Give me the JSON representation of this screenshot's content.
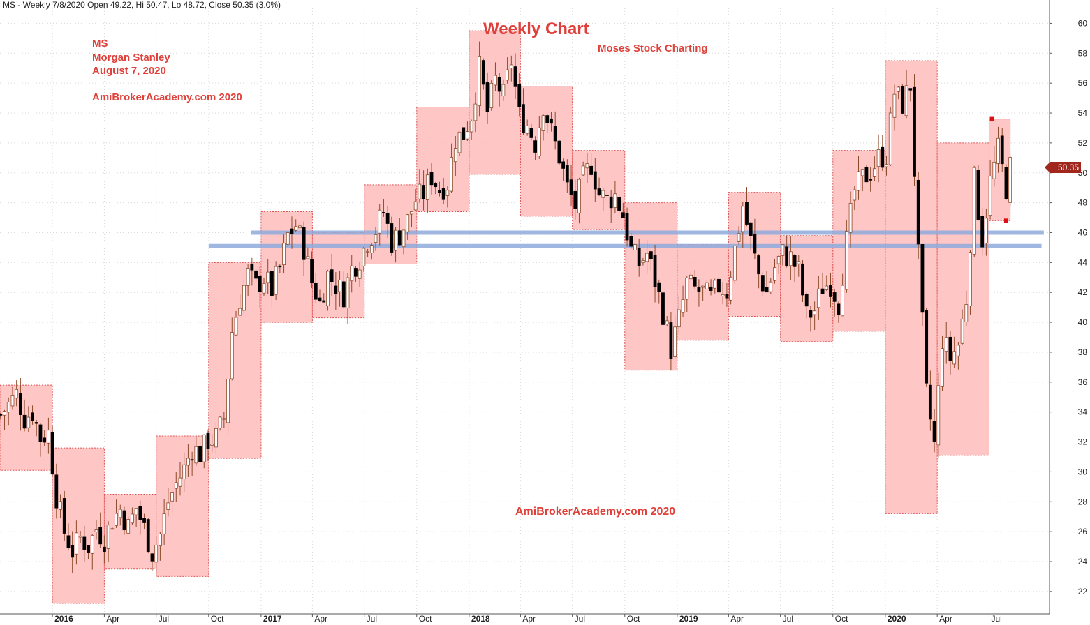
{
  "header": "MS - Weekly 7/8/2020 Open 49.22, Hi 50.47, Lo 48.72, Close 50.35 (3.0%)",
  "notes": {
    "symbol": "MS",
    "company": "Morgan Stanley",
    "date": "August 7, 2020",
    "site": "AmiBrokerAcademy.com  2020"
  },
  "title": "Weekly Chart",
  "subtitle": "Moses Stock Charting",
  "watermark": "AmiBrokerAcademy.com  2020",
  "last_price_label": "50.35",
  "colors": {
    "box_fill": "#ffbcbc",
    "box_border": "#e05050",
    "bull_body": "#ffffff",
    "bear_body": "#000000",
    "wick": "#8b4a2a",
    "support_line": "#8faadc",
    "support_overlap": "#9fd39f",
    "text_red": "#e0403a",
    "price_badge": "#a0261e"
  },
  "chart_data": {
    "type": "candlestick",
    "ylim": [
      20.5,
      61
    ],
    "y_ticks": [
      22,
      24,
      26,
      28,
      30,
      32,
      34,
      36,
      38,
      40,
      42,
      44,
      46,
      48,
      50,
      52,
      54,
      56,
      58,
      60
    ],
    "x_ticks": [
      "2016",
      "Apr",
      "Jul",
      "Oct",
      "2017",
      "Apr",
      "Jul",
      "Oct",
      "2018",
      "Apr",
      "Jul",
      "Oct",
      "2019",
      "Apr",
      "Jul",
      "Oct",
      "2020",
      "Apr",
      "Jul"
    ],
    "x_tick_dates": [
      "2016-01-01",
      "2016-04-01",
      "2016-07-01",
      "2016-10-01",
      "2017-01-01",
      "2017-04-01",
      "2017-07-01",
      "2017-10-01",
      "2018-01-01",
      "2018-04-01",
      "2018-07-01",
      "2018-10-01",
      "2019-01-01",
      "2019-04-01",
      "2019-07-01",
      "2019-10-01",
      "2020-01-01",
      "2020-04-01",
      "2020-07-01"
    ],
    "x_range": [
      "2015-10-01",
      "2020-10-15"
    ],
    "last_close": 50.35,
    "quarter_ranges": [
      {
        "start": "2015-10-01",
        "end": "2016-01-01",
        "high": 35.8,
        "low": 30.1
      },
      {
        "start": "2016-01-01",
        "end": "2016-04-01",
        "high": 31.6,
        "low": 21.2
      },
      {
        "start": "2016-04-01",
        "end": "2016-07-01",
        "high": 28.5,
        "low": 23.5
      },
      {
        "start": "2016-07-01",
        "end": "2016-10-01",
        "high": 32.4,
        "low": 23.0
      },
      {
        "start": "2016-10-01",
        "end": "2017-01-01",
        "high": 44.0,
        "low": 30.9
      },
      {
        "start": "2017-01-01",
        "end": "2017-04-01",
        "high": 47.4,
        "low": 40.0
      },
      {
        "start": "2017-04-01",
        "end": "2017-07-01",
        "high": 46.0,
        "low": 40.3
      },
      {
        "start": "2017-07-01",
        "end": "2017-10-01",
        "high": 49.2,
        "low": 43.9
      },
      {
        "start": "2017-10-01",
        "end": "2018-01-01",
        "high": 54.4,
        "low": 47.4
      },
      {
        "start": "2018-01-01",
        "end": "2018-04-01",
        "high": 59.5,
        "low": 49.9
      },
      {
        "start": "2018-04-01",
        "end": "2018-07-01",
        "high": 55.8,
        "low": 47.1
      },
      {
        "start": "2018-07-01",
        "end": "2018-10-01",
        "high": 51.5,
        "low": 46.2
      },
      {
        "start": "2018-10-01",
        "end": "2019-01-01",
        "high": 48.0,
        "low": 36.8
      },
      {
        "start": "2019-01-01",
        "end": "2019-04-01",
        "high": 45.2,
        "low": 38.8
      },
      {
        "start": "2019-04-01",
        "end": "2019-07-01",
        "high": 48.7,
        "low": 40.4
      },
      {
        "start": "2019-07-01",
        "end": "2019-10-01",
        "high": 45.8,
        "low": 38.7
      },
      {
        "start": "2019-10-01",
        "end": "2020-01-01",
        "high": 51.5,
        "low": 39.4
      },
      {
        "start": "2020-01-01",
        "end": "2020-04-01",
        "high": 57.5,
        "low": 27.2
      },
      {
        "start": "2020-04-01",
        "end": "2020-07-01",
        "high": 52.0,
        "low": 31.1
      },
      {
        "start": "2020-07-01",
        "end": "2020-08-07",
        "high": 53.6,
        "low": 46.8
      }
    ],
    "support_lines": [
      {
        "start": "2016-12-15",
        "end": "2020-10-05",
        "value": 46.0
      },
      {
        "start": "2016-10-01",
        "end": "2020-10-01",
        "value": 45.1
      }
    ],
    "pivot_marks": [
      {
        "date": "2020-07-06",
        "value": 53.6
      },
      {
        "date": "2020-07-31",
        "value": 46.8
      }
    ],
    "weekly_close_path": [
      [
        "2015-10-02",
        33.8
      ],
      [
        "2015-10-16",
        34.5
      ],
      [
        "2015-10-30",
        35.2
      ],
      [
        "2015-11-13",
        33.6
      ],
      [
        "2015-11-27",
        34.0
      ],
      [
        "2015-12-11",
        32.3
      ],
      [
        "2015-12-25",
        32.6
      ],
      [
        "2016-01-08",
        28.4
      ],
      [
        "2016-01-22",
        26.0
      ],
      [
        "2016-02-05",
        24.7
      ],
      [
        "2016-02-19",
        25.6
      ],
      [
        "2016-03-04",
        25.0
      ],
      [
        "2016-03-18",
        26.2
      ],
      [
        "2016-04-01",
        25.5
      ],
      [
        "2016-04-15",
        26.8
      ],
      [
        "2016-04-29",
        27.5
      ],
      [
        "2016-05-13",
        26.3
      ],
      [
        "2016-05-27",
        27.6
      ],
      [
        "2016-06-10",
        26.2
      ],
      [
        "2016-06-24",
        24.6
      ],
      [
        "2016-07-08",
        25.8
      ],
      [
        "2016-07-22",
        28.0
      ],
      [
        "2016-08-05",
        29.2
      ],
      [
        "2016-08-19",
        30.2
      ],
      [
        "2016-09-02",
        31.6
      ],
      [
        "2016-09-16",
        31.2
      ],
      [
        "2016-09-30",
        32.1
      ],
      [
        "2016-10-14",
        32.3
      ],
      [
        "2016-10-28",
        33.6
      ],
      [
        "2016-11-11",
        39.4
      ],
      [
        "2016-11-25",
        41.6
      ],
      [
        "2016-12-09",
        43.2
      ],
      [
        "2016-12-23",
        42.4
      ],
      [
        "2017-01-06",
        43.0
      ],
      [
        "2017-01-20",
        42.2
      ],
      [
        "2017-02-03",
        43.6
      ],
      [
        "2017-02-17",
        45.8
      ],
      [
        "2017-03-03",
        46.5
      ],
      [
        "2017-03-17",
        45.0
      ],
      [
        "2017-03-31",
        42.7
      ],
      [
        "2017-04-14",
        41.3
      ],
      [
        "2017-04-28",
        43.2
      ],
      [
        "2017-05-12",
        42.5
      ],
      [
        "2017-05-26",
        41.9
      ],
      [
        "2017-06-09",
        43.6
      ],
      [
        "2017-06-23",
        44.3
      ],
      [
        "2017-07-07",
        45.5
      ],
      [
        "2017-07-21",
        46.2
      ],
      [
        "2017-08-04",
        47.4
      ],
      [
        "2017-08-18",
        45.4
      ],
      [
        "2017-09-01",
        45.9
      ],
      [
        "2017-09-15",
        46.8
      ],
      [
        "2017-09-29",
        48.2
      ],
      [
        "2017-10-13",
        48.6
      ],
      [
        "2017-10-27",
        49.8
      ],
      [
        "2017-11-10",
        48.9
      ],
      [
        "2017-11-24",
        49.3
      ],
      [
        "2017-12-08",
        52.3
      ],
      [
        "2017-12-22",
        52.6
      ],
      [
        "2018-01-05",
        53.9
      ],
      [
        "2018-01-19",
        57.0
      ],
      [
        "2018-02-02",
        54.1
      ],
      [
        "2018-02-16",
        56.2
      ],
      [
        "2018-03-02",
        55.1
      ],
      [
        "2018-03-16",
        57.5
      ],
      [
        "2018-03-30",
        53.8
      ],
      [
        "2018-04-13",
        53.2
      ],
      [
        "2018-04-27",
        52.0
      ],
      [
        "2018-05-11",
        54.6
      ],
      [
        "2018-05-25",
        52.7
      ],
      [
        "2018-06-08",
        51.1
      ],
      [
        "2018-06-22",
        49.0
      ],
      [
        "2018-07-06",
        47.8
      ],
      [
        "2018-07-20",
        49.6
      ],
      [
        "2018-08-03",
        50.6
      ],
      [
        "2018-08-17",
        48.6
      ],
      [
        "2018-08-31",
        48.2
      ],
      [
        "2018-09-14",
        48.5
      ],
      [
        "2018-09-28",
        47.2
      ],
      [
        "2018-10-12",
        44.8
      ],
      [
        "2018-10-26",
        43.9
      ],
      [
        "2018-11-09",
        44.6
      ],
      [
        "2018-11-23",
        42.8
      ],
      [
        "2018-12-07",
        40.7
      ],
      [
        "2018-12-21",
        38.2
      ],
      [
        "2019-01-04",
        40.2
      ],
      [
        "2019-01-18",
        42.6
      ],
      [
        "2019-02-01",
        42.2
      ],
      [
        "2019-02-15",
        42.0
      ],
      [
        "2019-03-01",
        41.6
      ],
      [
        "2019-03-15",
        42.4
      ],
      [
        "2019-03-29",
        42.1
      ],
      [
        "2019-04-12",
        44.9
      ],
      [
        "2019-04-26",
        47.8
      ],
      [
        "2019-05-10",
        45.4
      ],
      [
        "2019-05-24",
        43.2
      ],
      [
        "2019-06-07",
        42.0
      ],
      [
        "2019-06-21",
        43.7
      ],
      [
        "2019-07-05",
        44.6
      ],
      [
        "2019-07-19",
        44.3
      ],
      [
        "2019-08-02",
        43.4
      ],
      [
        "2019-08-16",
        40.4
      ],
      [
        "2019-08-30",
        40.8
      ],
      [
        "2019-09-13",
        42.4
      ],
      [
        "2019-09-27",
        42.6
      ],
      [
        "2019-10-11",
        41.3
      ],
      [
        "2019-10-25",
        45.4
      ],
      [
        "2019-11-08",
        48.8
      ],
      [
        "2019-11-22",
        49.6
      ],
      [
        "2019-12-06",
        50.1
      ],
      [
        "2019-12-20",
        51.0
      ],
      [
        "2020-01-03",
        51.2
      ],
      [
        "2020-01-17",
        55.4
      ],
      [
        "2020-01-31",
        54.6
      ],
      [
        "2020-02-14",
        55.9
      ],
      [
        "2020-02-28",
        44.4
      ],
      [
        "2020-03-13",
        35.2
      ],
      [
        "2020-03-27",
        31.8
      ],
      [
        "2020-04-10",
        38.9
      ],
      [
        "2020-04-24",
        37.6
      ],
      [
        "2020-05-08",
        38.5
      ],
      [
        "2020-05-22",
        41.6
      ],
      [
        "2020-06-05",
        49.5
      ],
      [
        "2020-06-19",
        45.6
      ],
      [
        "2020-07-03",
        49.4
      ],
      [
        "2020-07-17",
        51.5
      ],
      [
        "2020-07-31",
        49.0
      ],
      [
        "2020-08-07",
        50.35
      ]
    ]
  }
}
